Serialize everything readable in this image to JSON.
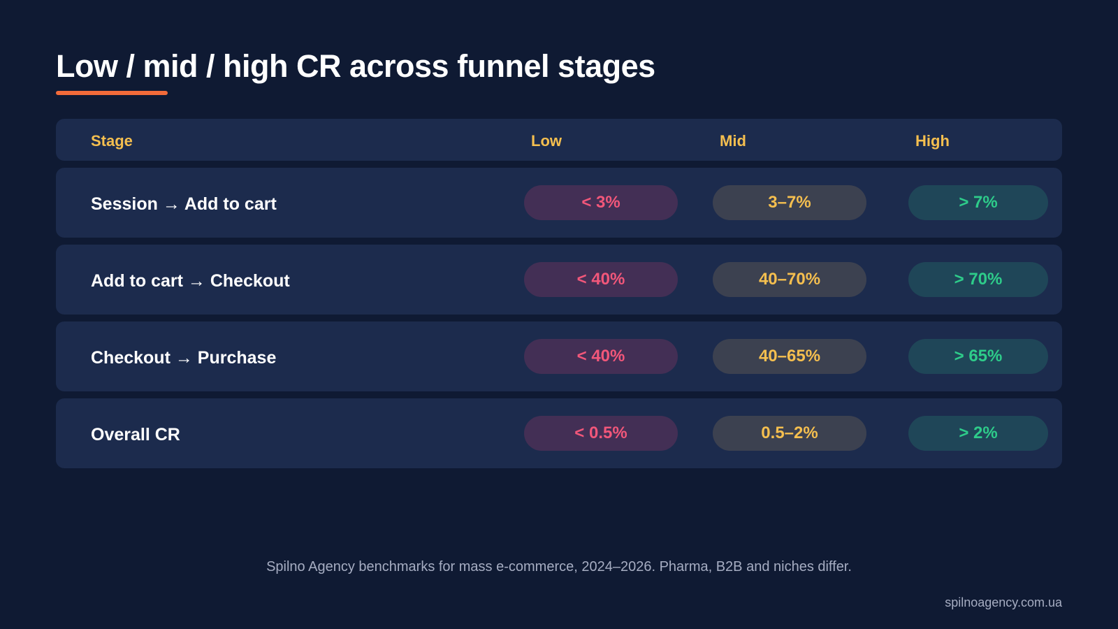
{
  "title": "Low / mid / high CR across funnel stages",
  "table": {
    "headers": {
      "stage": "Stage",
      "low": "Low",
      "mid": "Mid",
      "high": "High"
    },
    "rows": [
      {
        "stage": "Session → Add to cart",
        "low": "< 3%",
        "mid": "3–7%",
        "high": "> 7%"
      },
      {
        "stage": "Add to cart → Checkout",
        "low": "< 40%",
        "mid": "40–70%",
        "high": "> 70%"
      },
      {
        "stage": "Checkout → Purchase",
        "low": "< 40%",
        "mid": "40–65%",
        "high": "> 65%"
      },
      {
        "stage": "Overall CR",
        "low": "< 0.5%",
        "mid": "0.5–2%",
        "high": "> 2%"
      }
    ]
  },
  "footnote": "Spilno Agency benchmarks for mass e-commerce, 2024–2026. Pharma, B2B and niches differ.",
  "site": "spilnoagency.com.ua",
  "colors": {
    "background": "#0f1a33",
    "row_background": "#1c2b4d",
    "accent": "#f26b3a",
    "header_text": "#f5bf4f",
    "low_text": "#f2577a",
    "mid_text": "#f5bf4f",
    "high_text": "#2ecc8a"
  }
}
